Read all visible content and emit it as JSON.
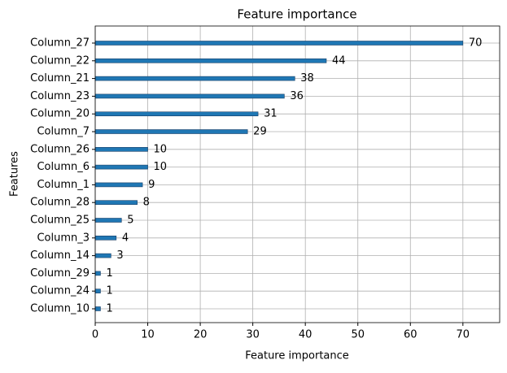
{
  "chart_data": {
    "type": "barh",
    "title": "Feature importance",
    "x_label": "Feature importance",
    "y_label": "Features",
    "categories": [
      "Column_27",
      "Column_22",
      "Column_21",
      "Column_23",
      "Column_20",
      "Column_7",
      "Column_26",
      "Column_6",
      "Column_1",
      "Column_28",
      "Column_25",
      "Column_3",
      "Column_14",
      "Column_29",
      "Column_24",
      "Column_10"
    ],
    "values": [
      70,
      44,
      38,
      36,
      31,
      29,
      10,
      10,
      9,
      8,
      5,
      4,
      3,
      1,
      1,
      1
    ],
    "color": "#1f77b4",
    "xlim": [
      0,
      77
    ],
    "xticks": [
      0,
      10,
      20,
      30,
      40,
      50,
      60,
      70
    ],
    "grid": true
  }
}
